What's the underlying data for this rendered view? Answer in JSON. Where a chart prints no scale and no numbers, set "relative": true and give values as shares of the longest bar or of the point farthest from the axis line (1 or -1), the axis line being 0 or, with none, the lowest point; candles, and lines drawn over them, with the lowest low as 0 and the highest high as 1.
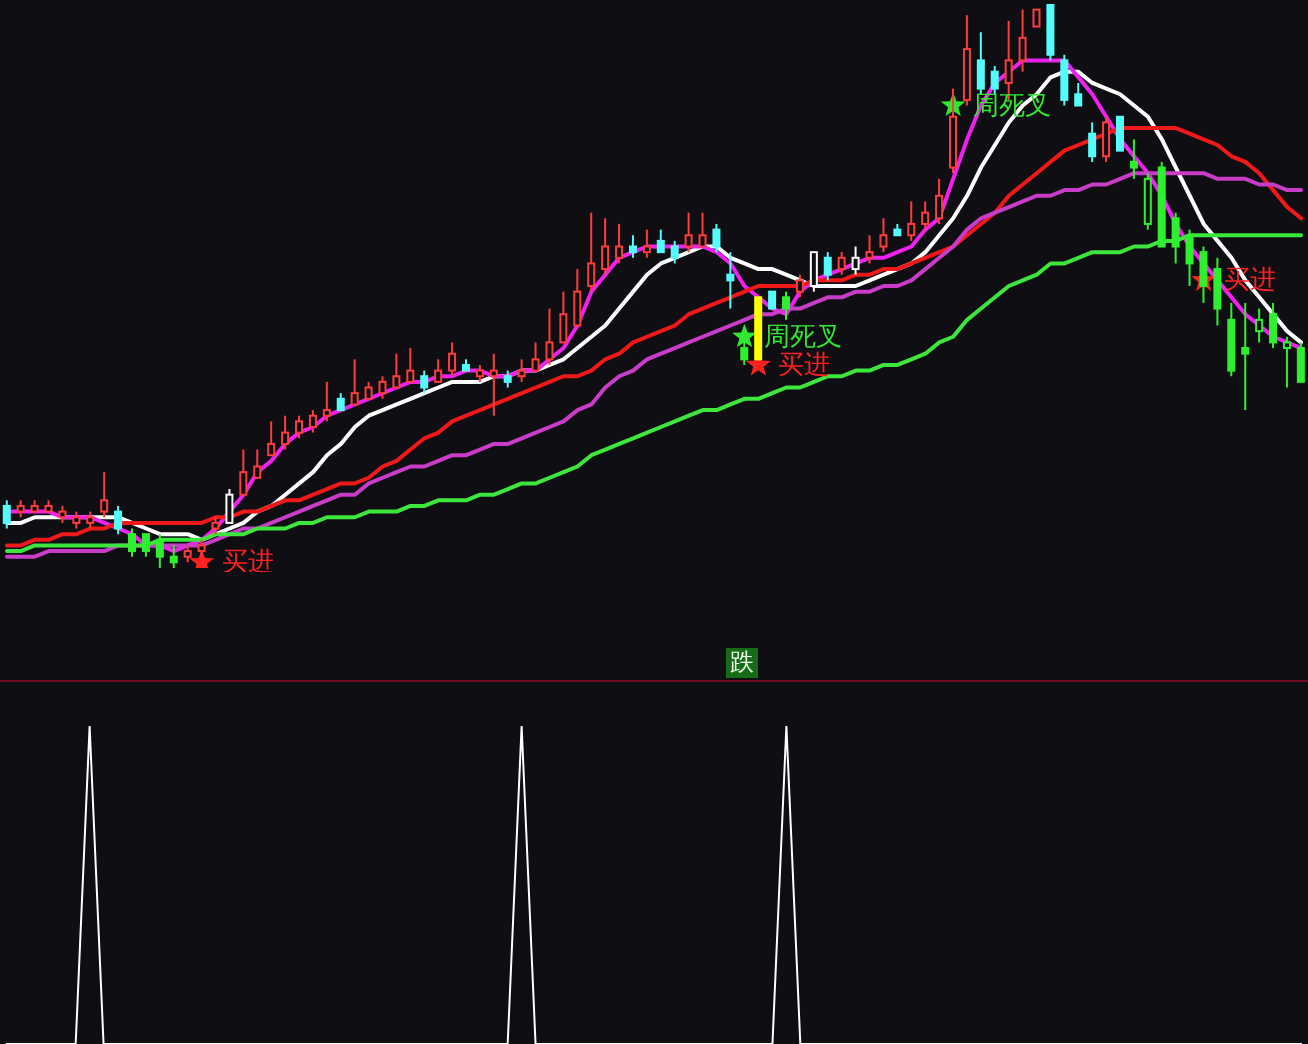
{
  "chart_data": [
    {
      "type": "candlestick",
      "relative": true,
      "categories": [
        null,
        null,
        null,
        null,
        null,
        null,
        null,
        null,
        null,
        null,
        null,
        null,
        null,
        null,
        null,
        null,
        null,
        null,
        null,
        null,
        null,
        null,
        null,
        null,
        null,
        null,
        null,
        null,
        null,
        null,
        null,
        null,
        null,
        null,
        null,
        null,
        null,
        null,
        null,
        null,
        null,
        null,
        null,
        null,
        null,
        null,
        null,
        null,
        null,
        null,
        null,
        null,
        null,
        null,
        null,
        null,
        null,
        null,
        null,
        null,
        null,
        null,
        null,
        null,
        null,
        null,
        null,
        null,
        null,
        null,
        null,
        null,
        null,
        null,
        null,
        null,
        null,
        null,
        null,
        null,
        null,
        null,
        null,
        null,
        null,
        null,
        null,
        null,
        null,
        null,
        null,
        null,
        null,
        null
      ],
      "ohlc": [
        [
          0.11,
          0.12,
          0.07,
          0.08
        ],
        [
          0.1,
          0.12,
          0.09,
          0.11
        ],
        [
          0.1,
          0.12,
          0.1,
          0.11
        ],
        [
          0.1,
          0.12,
          0.1,
          0.11
        ],
        [
          0.09,
          0.11,
          0.08,
          0.1
        ],
        [
          0.08,
          0.1,
          0.07,
          0.09
        ],
        [
          0.08,
          0.1,
          0.07,
          0.09
        ],
        [
          0.1,
          0.17,
          0.09,
          0.12
        ],
        [
          0.1,
          0.11,
          0.06,
          0.07
        ],
        [
          0.06,
          0.07,
          0.02,
          0.03
        ],
        [
          0.06,
          0.06,
          0.02,
          0.03
        ],
        [
          0.05,
          0.06,
          0.0,
          0.02
        ],
        [
          0.02,
          0.04,
          0.0,
          0.01
        ],
        [
          0.02,
          0.04,
          0.01,
          0.03
        ],
        [
          0.03,
          0.05,
          0.02,
          0.04
        ],
        [
          0.07,
          0.09,
          0.06,
          0.08
        ],
        [
          0.08,
          0.14,
          0.08,
          0.13
        ],
        [
          0.13,
          0.21,
          0.13,
          0.17
        ],
        [
          0.16,
          0.21,
          0.16,
          0.18
        ],
        [
          0.2,
          0.26,
          0.2,
          0.22
        ],
        [
          0.22,
          0.27,
          0.21,
          0.24
        ],
        [
          0.24,
          0.27,
          0.23,
          0.26
        ],
        [
          0.25,
          0.28,
          0.24,
          0.27
        ],
        [
          0.27,
          0.33,
          0.26,
          0.28
        ],
        [
          0.3,
          0.31,
          0.28,
          0.28
        ],
        [
          0.29,
          0.37,
          0.29,
          0.31
        ],
        [
          0.3,
          0.33,
          0.3,
          0.32
        ],
        [
          0.31,
          0.34,
          0.3,
          0.33
        ],
        [
          0.32,
          0.38,
          0.32,
          0.34
        ],
        [
          0.33,
          0.39,
          0.33,
          0.35
        ],
        [
          0.34,
          0.35,
          0.31,
          0.32
        ],
        [
          0.33,
          0.37,
          0.33,
          0.35
        ],
        [
          0.35,
          0.4,
          0.34,
          0.38
        ],
        [
          0.36,
          0.37,
          0.35,
          0.35
        ],
        [
          0.34,
          0.36,
          0.33,
          0.35
        ],
        [
          0.34,
          0.38,
          0.27,
          0.35
        ],
        [
          0.34,
          0.35,
          0.32,
          0.33
        ],
        [
          0.34,
          0.37,
          0.33,
          0.35
        ],
        [
          0.35,
          0.4,
          0.35,
          0.37
        ],
        [
          0.37,
          0.46,
          0.36,
          0.4
        ],
        [
          0.4,
          0.49,
          0.4,
          0.45
        ],
        [
          0.43,
          0.53,
          0.43,
          0.49
        ],
        [
          0.5,
          0.63,
          0.49,
          0.54
        ],
        [
          0.53,
          0.62,
          0.52,
          0.57
        ],
        [
          0.55,
          0.61,
          0.54,
          0.57
        ],
        [
          0.57,
          0.59,
          0.55,
          0.56
        ],
        [
          0.56,
          0.6,
          0.55,
          0.57
        ],
        [
          0.58,
          0.6,
          0.56,
          0.56
        ],
        [
          0.57,
          0.58,
          0.54,
          0.55
        ],
        [
          0.57,
          0.63,
          0.56,
          0.59
        ],
        [
          0.57,
          0.63,
          0.57,
          0.59
        ],
        [
          0.6,
          0.61,
          0.56,
          0.57
        ],
        [
          0.52,
          0.56,
          0.46,
          0.51
        ],
        [
          0.39,
          0.41,
          0.36,
          0.37
        ],
        [
          0.48,
          0.48,
          0.37,
          0.37
        ],
        [
          0.49,
          0.49,
          0.46,
          0.46
        ],
        [
          0.48,
          0.49,
          0.44,
          0.46
        ],
        [
          0.49,
          0.52,
          0.48,
          0.51
        ],
        [
          0.5,
          0.56,
          0.49,
          0.56
        ],
        [
          0.55,
          0.56,
          0.51,
          0.52
        ],
        [
          0.53,
          0.56,
          0.52,
          0.55
        ],
        [
          0.53,
          0.57,
          0.52,
          0.55
        ],
        [
          0.55,
          0.59,
          0.54,
          0.56
        ],
        [
          0.57,
          0.62,
          0.56,
          0.59
        ],
        [
          0.6,
          0.61,
          0.59,
          0.59
        ],
        [
          0.59,
          0.65,
          0.58,
          0.61
        ],
        [
          0.61,
          0.65,
          0.6,
          0.63
        ],
        [
          0.62,
          0.69,
          0.61,
          0.66
        ],
        [
          0.71,
          0.85,
          0.7,
          0.8
        ],
        [
          0.83,
          0.98,
          0.82,
          0.92
        ],
        [
          0.9,
          0.95,
          0.84,
          0.85
        ],
        [
          0.88,
          0.89,
          0.84,
          0.85
        ],
        [
          0.86,
          0.97,
          0.83,
          0.9
        ],
        [
          0.9,
          0.99,
          0.88,
          0.94
        ],
        [
          0.96,
          0.99,
          0.96,
          0.99
        ],
        [
          1.0,
          1.0,
          0.9,
          0.91
        ],
        [
          0.9,
          0.91,
          0.82,
          0.83
        ],
        [
          0.84,
          0.86,
          0.82,
          0.82
        ],
        [
          0.77,
          0.79,
          0.72,
          0.73
        ],
        [
          0.73,
          0.8,
          0.72,
          0.79
        ],
        [
          0.8,
          0.8,
          0.74,
          0.74
        ],
        [
          0.72,
          0.76,
          0.69,
          0.71
        ],
        [
          0.61,
          0.7,
          0.6,
          0.69
        ],
        [
          0.71,
          0.72,
          0.57,
          0.57
        ],
        [
          0.62,
          0.63,
          0.54,
          0.57
        ],
        [
          0.59,
          0.6,
          0.5,
          0.54
        ],
        [
          0.56,
          0.57,
          0.47,
          0.5
        ],
        [
          0.53,
          0.55,
          0.43,
          0.46
        ],
        [
          0.44,
          0.47,
          0.34,
          0.35
        ],
        [
          0.39,
          0.47,
          0.28,
          0.38
        ],
        [
          0.42,
          0.46,
          0.4,
          0.44
        ],
        [
          0.45,
          0.47,
          0.39,
          0.4
        ],
        [
          0.39,
          0.41,
          0.32,
          0.4
        ],
        [
          0.39,
          0.4,
          0.33,
          0.33
        ]
      ],
      "colors": [
        "#54fcfc",
        "#ff3c3c",
        "#ff3c3c",
        "#ff3c3c",
        "#ff3c3c",
        "#ff3c3c",
        "#ff3c3c",
        "#ff3c3c",
        "#54fcfc",
        "#2ef02e",
        "#2ef02e",
        "#2ef02e",
        "#2ef02e",
        "#ff3c3c",
        "#ff3c3c",
        "#ff3c3c",
        "#ffffff",
        "#ff3c3c",
        "#ff3c3c",
        "#ff3c3c",
        "#ff3c3c",
        "#ff3c3c",
        "#ff3c3c",
        "#ff3c3c",
        "#54fcfc",
        "#ff3c3c",
        "#ff3c3c",
        "#ff3c3c",
        "#ff3c3c",
        "#ff3c3c",
        "#54fcfc",
        "#ff3c3c",
        "#ff3c3c",
        "#54fcfc",
        "#ff3c3c",
        "#ff3c3c",
        "#54fcfc",
        "#ff3c3c",
        "#ff3c3c",
        "#ff3c3c",
        "#ff3c3c",
        "#ff3c3c",
        "#ff3c3c",
        "#ff3c3c",
        "#ff3c3c",
        "#54fcfc",
        "#ff3c3c",
        "#54fcfc",
        "#54fcfc",
        "#ff3c3c",
        "#ff3c3c",
        "#54fcfc",
        "#54fcfc",
        "#2ef02e",
        "#ffff00",
        "#54fcfc",
        "#2ef02e",
        "#ff3c3c",
        "#ffffff",
        "#54fcfc",
        "#ff3c3c",
        "#ffffff",
        "#ff3c3c",
        "#ff3c3c",
        "#54fcfc",
        "#ff3c3c",
        "#ff3c3c",
        "#ff3c3c",
        "#ff3c3c",
        "#ff3c3c",
        "#54fcfc",
        "#54fcfc",
        "#ff3c3c",
        "#ff3c3c",
        "#ff3c3c",
        "#54fcfc",
        "#54fcfc",
        "#54fcfc",
        "#54fcfc",
        "#ff3c3c",
        "#54fcfc",
        "#2ef02e",
        "#2ef02e",
        "#2ef02e",
        "#2ef02e",
        "#2ef02e",
        "#2ef02e",
        "#2ef02e",
        "#2ef02e",
        "#2ef02e",
        "#2ef02e",
        "#2ef02e",
        "#2ef02e",
        "#2ef02e"
      ],
      "series": [
        {
          "type": "line",
          "color": "#ffffff",
          "values": [
            0.08,
            0.08,
            0.09,
            0.09,
            0.09,
            0.09,
            0.09,
            0.09,
            0.09,
            0.08,
            0.07,
            0.06,
            0.06,
            0.06,
            0.05,
            0.06,
            0.07,
            0.08,
            0.1,
            0.11,
            0.13,
            0.15,
            0.17,
            0.2,
            0.22,
            0.25,
            0.27,
            0.28,
            0.29,
            0.3,
            0.31,
            0.32,
            0.33,
            0.33,
            0.33,
            0.34,
            0.34,
            0.35,
            0.35,
            0.36,
            0.37,
            0.39,
            0.41,
            0.43,
            0.46,
            0.49,
            0.52,
            0.54,
            0.55,
            0.56,
            0.57,
            0.57,
            0.55,
            0.54,
            0.53,
            0.53,
            0.52,
            0.51,
            0.5,
            0.5,
            0.5,
            0.5,
            0.51,
            0.52,
            0.53,
            0.54,
            0.56,
            0.59,
            0.62,
            0.66,
            0.71,
            0.75,
            0.79,
            0.82,
            0.84,
            0.87,
            0.88,
            0.88,
            0.86,
            0.85,
            0.84,
            0.82,
            0.8,
            0.76,
            0.71,
            0.66,
            0.61,
            0.58,
            0.55,
            0.51,
            0.48,
            0.45,
            0.42,
            0.4
          ]
        },
        {
          "type": "line",
          "color": "#f020f0",
          "values": [
            0.1,
            0.1,
            0.1,
            0.1,
            0.09,
            0.09,
            0.09,
            0.08,
            0.07,
            0.06,
            0.04,
            0.04,
            0.03,
            0.04,
            0.05,
            0.07,
            0.1,
            0.13,
            0.17,
            0.19,
            0.22,
            0.24,
            0.25,
            0.27,
            0.28,
            0.29,
            0.3,
            0.31,
            0.32,
            0.33,
            0.33,
            0.34,
            0.34,
            0.35,
            0.35,
            0.34,
            0.34,
            0.35,
            0.35,
            0.37,
            0.39,
            0.43,
            0.49,
            0.52,
            0.55,
            0.56,
            0.57,
            0.57,
            0.57,
            0.57,
            0.57,
            0.56,
            0.54,
            0.5,
            0.48,
            0.46,
            0.45,
            0.49,
            0.51,
            0.52,
            0.53,
            0.54,
            0.55,
            0.55,
            0.56,
            0.57,
            0.6,
            0.62,
            0.69,
            0.76,
            0.82,
            0.86,
            0.88,
            0.9,
            0.9,
            0.9,
            0.9,
            0.87,
            0.84,
            0.8,
            0.76,
            0.73,
            0.7,
            0.66,
            0.61,
            0.57,
            0.54,
            0.51,
            0.48,
            0.45,
            0.43,
            0.41,
            0.4,
            0.39
          ]
        },
        {
          "type": "line",
          "color": "#f01818",
          "values": [
            0.04,
            0.04,
            0.05,
            0.05,
            0.06,
            0.06,
            0.07,
            0.07,
            0.08,
            0.08,
            0.08,
            0.08,
            0.08,
            0.08,
            0.08,
            0.09,
            0.09,
            0.1,
            0.1,
            0.11,
            0.12,
            0.12,
            0.13,
            0.14,
            0.15,
            0.15,
            0.16,
            0.18,
            0.19,
            0.21,
            0.23,
            0.24,
            0.26,
            0.27,
            0.28,
            0.29,
            0.3,
            0.31,
            0.32,
            0.33,
            0.34,
            0.34,
            0.35,
            0.37,
            0.38,
            0.4,
            0.41,
            0.42,
            0.43,
            0.45,
            0.46,
            0.47,
            0.48,
            0.49,
            0.5,
            0.5,
            0.5,
            0.5,
            0.51,
            0.51,
            0.51,
            0.52,
            0.52,
            0.53,
            0.53,
            0.54,
            0.55,
            0.56,
            0.57,
            0.59,
            0.61,
            0.63,
            0.66,
            0.68,
            0.7,
            0.72,
            0.74,
            0.75,
            0.76,
            0.77,
            0.78,
            0.78,
            0.78,
            0.78,
            0.78,
            0.77,
            0.76,
            0.75,
            0.73,
            0.72,
            0.7,
            0.67,
            0.64,
            0.62
          ]
        },
        {
          "type": "line",
          "color": "#c83cc8",
          "values": [
            0.02,
            0.02,
            0.02,
            0.03,
            0.03,
            0.03,
            0.03,
            0.03,
            0.04,
            0.04,
            0.04,
            0.04,
            0.04,
            0.04,
            0.04,
            0.05,
            0.06,
            0.07,
            0.07,
            0.08,
            0.09,
            0.1,
            0.11,
            0.12,
            0.13,
            0.13,
            0.15,
            0.16,
            0.17,
            0.18,
            0.18,
            0.19,
            0.2,
            0.2,
            0.21,
            0.22,
            0.22,
            0.23,
            0.24,
            0.25,
            0.26,
            0.28,
            0.29,
            0.32,
            0.34,
            0.35,
            0.37,
            0.38,
            0.39,
            0.4,
            0.41,
            0.42,
            0.43,
            0.44,
            0.45,
            0.45,
            0.46,
            0.46,
            0.47,
            0.48,
            0.48,
            0.49,
            0.49,
            0.5,
            0.5,
            0.51,
            0.53,
            0.55,
            0.57,
            0.6,
            0.62,
            0.63,
            0.64,
            0.65,
            0.66,
            0.66,
            0.67,
            0.67,
            0.68,
            0.68,
            0.69,
            0.7,
            0.7,
            0.7,
            0.7,
            0.7,
            0.7,
            0.69,
            0.69,
            0.69,
            0.68,
            0.68,
            0.67,
            0.67
          ]
        },
        {
          "type": "line",
          "color": "#3ce63c",
          "values": [
            0.03,
            0.03,
            0.04,
            0.04,
            0.04,
            0.04,
            0.04,
            0.04,
            0.04,
            0.04,
            0.04,
            0.05,
            0.05,
            0.05,
            0.05,
            0.06,
            0.06,
            0.06,
            0.07,
            0.07,
            0.07,
            0.08,
            0.08,
            0.09,
            0.09,
            0.09,
            0.1,
            0.1,
            0.1,
            0.11,
            0.11,
            0.12,
            0.12,
            0.12,
            0.13,
            0.13,
            0.14,
            0.15,
            0.15,
            0.16,
            0.17,
            0.18,
            0.2,
            0.21,
            0.22,
            0.23,
            0.24,
            0.25,
            0.26,
            0.27,
            0.28,
            0.28,
            0.29,
            0.3,
            0.3,
            0.31,
            0.32,
            0.32,
            0.33,
            0.34,
            0.34,
            0.35,
            0.35,
            0.36,
            0.36,
            0.37,
            0.38,
            0.4,
            0.41,
            0.44,
            0.46,
            0.48,
            0.5,
            0.51,
            0.52,
            0.54,
            0.54,
            0.55,
            0.56,
            0.56,
            0.56,
            0.57,
            0.57,
            0.58,
            0.58,
            0.59,
            0.59,
            0.59,
            0.59,
            0.59,
            0.59,
            0.59,
            0.59,
            0.59
          ]
        },
        {
          "type": "scatter",
          "name": "买进",
          "color": "#ff2020",
          "marker": "star",
          "values": [
            null,
            null,
            null,
            null,
            null,
            null,
            null,
            null,
            null,
            null,
            null,
            null,
            null,
            null,
            0.01,
            null,
            null,
            null,
            null,
            null,
            null,
            null,
            null,
            null,
            null,
            null,
            null,
            null,
            null,
            null,
            null,
            null,
            null,
            null,
            null,
            null,
            null,
            null,
            null,
            null,
            null,
            null,
            null,
            null,
            null,
            null,
            null,
            null,
            null,
            null,
            null,
            null,
            null,
            null,
            0.36,
            null,
            null,
            null,
            null,
            null,
            null,
            null,
            null,
            null,
            null,
            null,
            null,
            null,
            null,
            null,
            null,
            null,
            null,
            null,
            null,
            null,
            null,
            null,
            null,
            null,
            null,
            null,
            null,
            null,
            null,
            null,
            0.51,
            null,
            null,
            null,
            null,
            null,
            null,
            null
          ]
        },
        {
          "type": "scatter",
          "name": "周死叉",
          "color": "#30e830",
          "marker": "star",
          "values": [
            null,
            null,
            null,
            null,
            null,
            null,
            null,
            null,
            null,
            null,
            null,
            null,
            null,
            null,
            null,
            null,
            null,
            null,
            null,
            null,
            null,
            null,
            null,
            null,
            null,
            null,
            null,
            null,
            null,
            null,
            null,
            null,
            null,
            null,
            null,
            null,
            null,
            null,
            null,
            null,
            null,
            null,
            null,
            null,
            null,
            null,
            null,
            null,
            null,
            null,
            null,
            null,
            null,
            0.41,
            null,
            null,
            null,
            null,
            null,
            null,
            null,
            null,
            null,
            null,
            null,
            null,
            null,
            null,
            0.82,
            null,
            null,
            null,
            null,
            null,
            null,
            null,
            null,
            null,
            null,
            null,
            null,
            null,
            null,
            null,
            null,
            null,
            null,
            null,
            null,
            null,
            null,
            null,
            null,
            null
          ]
        }
      ],
      "annotations": [
        "跌"
      ]
    },
    {
      "type": "line",
      "relative": true,
      "color": "#ffffff",
      "categories": [
        null,
        null,
        null,
        null,
        null,
        null,
        null,
        null,
        null,
        null,
        null,
        null,
        null,
        null,
        null,
        null,
        null,
        null,
        null,
        null,
        null,
        null,
        null,
        null,
        null,
        null,
        null,
        null,
        null,
        null,
        null,
        null,
        null,
        null,
        null,
        null,
        null,
        null,
        null,
        null,
        null,
        null,
        null,
        null,
        null,
        null,
        null,
        null,
        null,
        null,
        null,
        null,
        null,
        null,
        null,
        null,
        null,
        null,
        null,
        null,
        null,
        null,
        null,
        null,
        null,
        null,
        null,
        null,
        null,
        null,
        null,
        null,
        null,
        null,
        null,
        null,
        null,
        null,
        null,
        null,
        null,
        null,
        null,
        null,
        null,
        null,
        null,
        null,
        null,
        null,
        null,
        null,
        null,
        null
      ],
      "values": [
        0,
        0,
        0,
        0,
        0,
        0,
        1,
        0,
        0,
        0,
        0,
        0,
        0,
        0,
        0,
        0,
        0,
        0,
        0,
        0,
        0,
        0,
        0,
        0,
        0,
        0,
        0,
        0,
        0,
        0,
        0,
        0,
        0,
        0,
        0,
        0,
        0,
        1,
        0,
        0,
        0,
        0,
        0,
        0,
        0,
        0,
        0,
        0,
        0,
        0,
        0,
        0,
        0,
        0,
        0,
        0,
        1,
        0,
        0,
        0,
        0,
        0,
        0,
        0,
        0,
        0,
        0,
        0,
        0,
        0,
        0,
        0,
        0,
        0,
        0,
        0,
        0,
        0,
        0,
        0,
        0,
        0,
        0,
        0,
        0,
        0,
        0,
        0,
        0,
        0,
        0,
        0,
        0,
        0
      ]
    }
  ]
}
